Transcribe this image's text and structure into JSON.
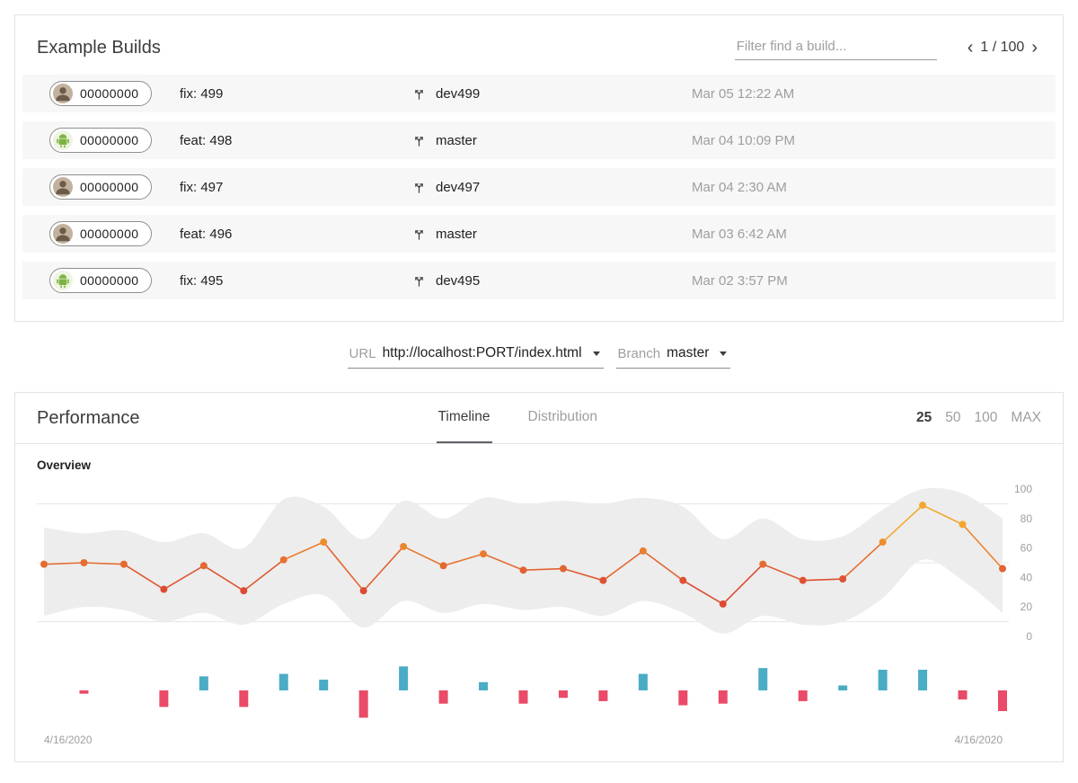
{
  "builds": {
    "title": "Example Builds",
    "filter_placeholder": "Filter find a build...",
    "pagination": {
      "prev_icon": "‹",
      "text": "1 / 100",
      "next_icon": "›"
    },
    "rows": [
      {
        "hash": "00000000",
        "avatar": "person",
        "message": "fix: 499",
        "branch": "dev499",
        "date": "Mar 05 12:22 AM"
      },
      {
        "hash": "00000000",
        "avatar": "android",
        "message": "feat: 498",
        "branch": "master",
        "date": "Mar 04 10:09 PM"
      },
      {
        "hash": "00000000",
        "avatar": "person",
        "message": "fix: 497",
        "branch": "dev497",
        "date": "Mar 04 2:30 AM"
      },
      {
        "hash": "00000000",
        "avatar": "person",
        "message": "feat: 496",
        "branch": "master",
        "date": "Mar 03 6:42 AM"
      },
      {
        "hash": "00000000",
        "avatar": "android",
        "message": "fix: 495",
        "branch": "dev495",
        "date": "Mar 02 3:57 PM"
      }
    ]
  },
  "selectors": {
    "url_label": "URL",
    "url_value": "http://localhost:PORT/index.html",
    "branch_label": "Branch",
    "branch_value": "master"
  },
  "performance": {
    "title": "Performance",
    "tabs": {
      "timeline": "Timeline",
      "distribution": "Distribution"
    },
    "limits": {
      "l25": "25",
      "l50": "50",
      "l100": "100",
      "lmax": "MAX"
    },
    "overview_label": "Overview"
  },
  "chart_data": {
    "type": "line",
    "title": "Overview",
    "x_axis": {
      "start_label": "4/16/2020",
      "end_label": "4/16/2020"
    },
    "ylim": [
      0,
      100
    ],
    "yticks": [
      0,
      20,
      40,
      60,
      80,
      100
    ],
    "gridlines": [
      10,
      50,
      90
    ],
    "legend": "none",
    "series": [
      {
        "name": "performance-score",
        "type": "line",
        "values": [
          49,
          50,
          49,
          32,
          48,
          31,
          52,
          64,
          31,
          61,
          48,
          56,
          45,
          46,
          38,
          58,
          38,
          22,
          49,
          38,
          39,
          64,
          89,
          76,
          46
        ]
      },
      {
        "name": "confidence-band-upper",
        "type": "band",
        "values": [
          74,
          70,
          72,
          64,
          70,
          60,
          93,
          88,
          66,
          92,
          80,
          94,
          90,
          92,
          90,
          94,
          88,
          66,
          80,
          66,
          68,
          86,
          100,
          97,
          80
        ]
      },
      {
        "name": "confidence-band-lower",
        "type": "band",
        "values": [
          14,
          20,
          18,
          10,
          16,
          8,
          22,
          28,
          6,
          24,
          16,
          22,
          18,
          20,
          14,
          24,
          16,
          2,
          14,
          8,
          10,
          26,
          52,
          38,
          16
        ]
      },
      {
        "name": "build-delta",
        "type": "bar",
        "values": [
          0,
          -4,
          0,
          -20,
          17,
          -20,
          20,
          13,
          -33,
          29,
          -16,
          10,
          -16,
          -9,
          -13,
          20,
          -18,
          -16,
          27,
          -13,
          6,
          25,
          25,
          -11,
          -25
        ]
      }
    ],
    "colors": {
      "line_low": "#dc4a33",
      "line_high": "#f3a72e",
      "band": "#ededed",
      "bar_positive": "#4bacc5",
      "bar_negative": "#e94b68",
      "axis_text": "#9e9e9e",
      "gridline": "#e4e4e4"
    }
  }
}
